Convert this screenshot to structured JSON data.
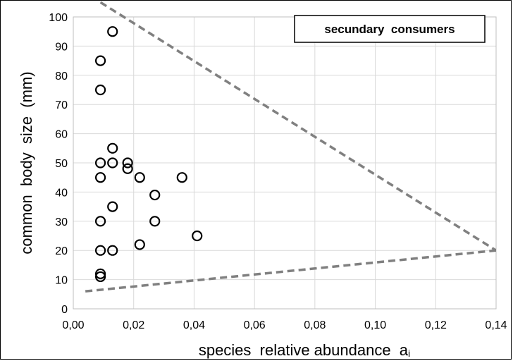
{
  "chart_data": {
    "type": "scatter",
    "title": "",
    "legend_box_text": "secundary  consumers",
    "xlabel": "species  relative abundance",
    "xlabel_subscript": "i",
    "xlabel_symbol": "a",
    "ylabel": "common  body  size  (mm)",
    "xlim": [
      0,
      0.14
    ],
    "ylim": [
      0,
      100
    ],
    "x_ticks": [
      "0,00",
      "0,02",
      "0,04",
      "0,06",
      "0,08",
      "0,10",
      "0,12",
      "0,14"
    ],
    "y_ticks": [
      "0",
      "10",
      "20",
      "30",
      "40",
      "50",
      "60",
      "70",
      "80",
      "90",
      "100"
    ],
    "grid": true,
    "legend_position": "top-right",
    "colors": {
      "points": "#000000",
      "lines": "#808080",
      "grid": "#d9d9d9"
    },
    "series": [
      {
        "points": [
          {
            "x": 0.013,
            "y": 95
          },
          {
            "x": 0.009,
            "y": 85
          },
          {
            "x": 0.009,
            "y": 75
          },
          {
            "x": 0.013,
            "y": 55
          },
          {
            "x": 0.009,
            "y": 50
          },
          {
            "x": 0.013,
            "y": 50
          },
          {
            "x": 0.018,
            "y": 50
          },
          {
            "x": 0.018,
            "y": 48
          },
          {
            "x": 0.009,
            "y": 45
          },
          {
            "x": 0.022,
            "y": 45
          },
          {
            "x": 0.036,
            "y": 45
          },
          {
            "x": 0.027,
            "y": 39
          },
          {
            "x": 0.013,
            "y": 35
          },
          {
            "x": 0.009,
            "y": 30
          },
          {
            "x": 0.027,
            "y": 30
          },
          {
            "x": 0.041,
            "y": 25
          },
          {
            "x": 0.022,
            "y": 22
          },
          {
            "x": 0.009,
            "y": 20
          },
          {
            "x": 0.013,
            "y": 20
          },
          {
            "x": 0.009,
            "y": 12
          },
          {
            "x": 0.009,
            "y": 11
          }
        ]
      }
    ],
    "lines": [
      {
        "x1": 0.009,
        "y1": 105,
        "x2": 0.14,
        "y2": 20
      },
      {
        "x1": 0.004,
        "y1": 6,
        "x2": 0.14,
        "y2": 20
      }
    ]
  }
}
